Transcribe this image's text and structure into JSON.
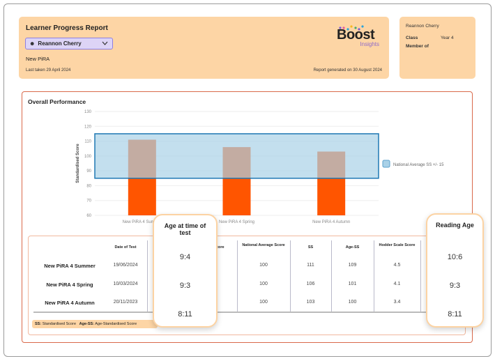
{
  "header": {
    "title": "Learner Progress Report",
    "learner": "Reannon Cherry",
    "assessment": "New PiRA",
    "last_taken": "Last taken 29 April 2024",
    "generated": "Report generated on 30 August 2024",
    "logo_text": "Boost",
    "logo_sub": "Insights"
  },
  "info": {
    "name": "Reannon Cherry",
    "class_label": "Class",
    "class_value": "Year 4",
    "member_label": "Member of"
  },
  "panel": {
    "title": "Overall Performance"
  },
  "chart_data": {
    "type": "bar",
    "categories": [
      "New PiRA 4 Summer",
      "New PiRA 4 Spring",
      "New PiRA 4 Autumn"
    ],
    "values": [
      111,
      106,
      103
    ],
    "ylabel": "Standardised Score",
    "ylim": [
      60,
      130
    ],
    "yticks": [
      "60",
      "70",
      "80",
      "90",
      "100",
      "110",
      "120",
      "130"
    ],
    "band": {
      "name": "National Average SS +/- 15",
      "low": 85,
      "high": 115,
      "color": "#a9d1e7"
    },
    "bar_color": "#ff5500",
    "grid": true,
    "legend": "right"
  },
  "table": {
    "headers": [
      "Date of Test",
      "Age at time of test",
      "Raw Score",
      "National Average Score",
      "SS",
      "Age-SS",
      "Hodder Scale Score",
      "Reading Age"
    ],
    "rows": [
      {
        "name": "New PiRA 4 Summer",
        "date": "19/06/2024",
        "age": "9:4",
        "nat": "100",
        "ss": "111",
        "agess": "109",
        "hodder": "4.5",
        "reading": "10:6"
      },
      {
        "name": "New PiRA 4 Spring",
        "date": "10/03/2024",
        "age": "9:3",
        "nat": "100",
        "ss": "106",
        "agess": "101",
        "hodder": "4.1",
        "reading": "9:3"
      },
      {
        "name": "New PiRA 4 Autumn",
        "date": "20/11/2023",
        "age": "8:11",
        "nat": "100",
        "ss": "103",
        "agess": "100",
        "hodder": "3.4",
        "reading": "8:11"
      }
    ],
    "footnote": {
      "ss_key": "SS:",
      "ss_val": "Standardised Score",
      "agess_key": "Age-SS:",
      "agess_val": "Age-Standardised Score"
    }
  }
}
